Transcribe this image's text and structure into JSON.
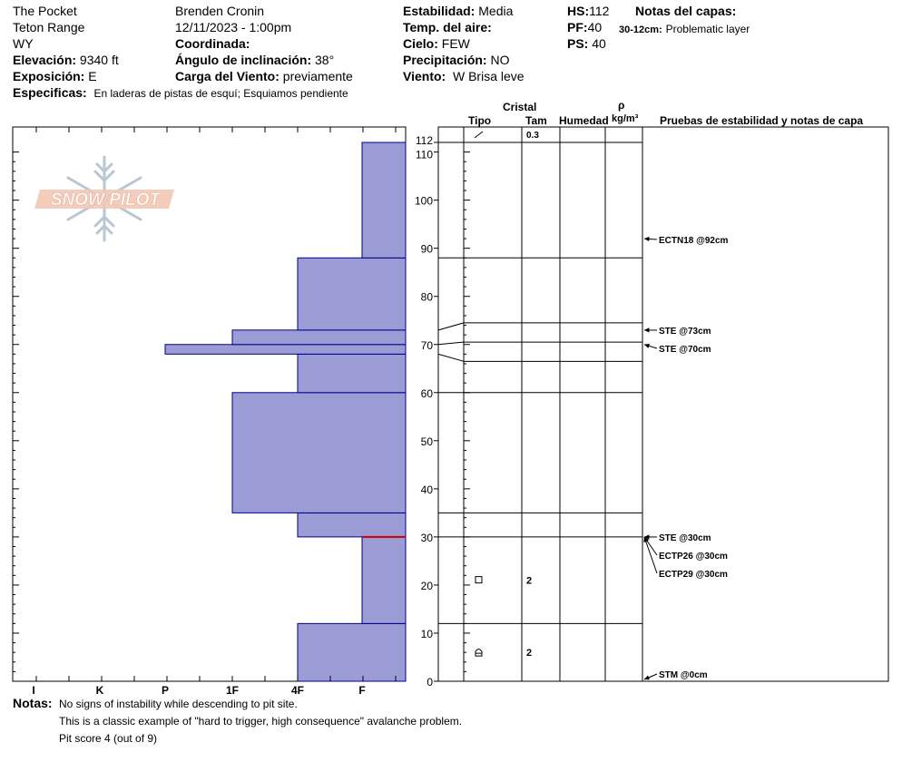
{
  "header": {
    "location": "The Pocket",
    "range": "Teton Range",
    "state": "WY",
    "elevation_label": "Elevación:",
    "elevation_value": "9340 ft",
    "aspect_label": "Exposición:",
    "aspect_value": "E",
    "specifics_label": "Especificas:",
    "specifics_value": "En laderas de pistas de esquí; Esquiamos pendiente",
    "observer": "Brenden Cronin",
    "datetime": "12/11/2023 - 1:00pm",
    "coord_label": "Coordinada:",
    "slope_label": "Ángulo de inclinación:",
    "slope_value": "38°",
    "wind_load_label": "Carga del Viento:",
    "wind_load_value": "previamente",
    "stability_label": "Estabilidad:",
    "stability_value": "Media",
    "air_temp_label": "Temp. del aire:",
    "sky_label": "Cielo:",
    "sky_value": "FEW",
    "precip_label": "Precipitación:",
    "precip_value": "NO",
    "wind_label": "Viento:",
    "wind_value": "W Brisa leve",
    "hs_label": "HS:",
    "hs_value": "112",
    "pf_label": "PF:",
    "pf_value": "40",
    "ps_label": "PS:",
    "ps_value": "40",
    "layer_notes_title": "Notas del capas:",
    "layer_note_range": "30-12cm:",
    "layer_note_text": "Problematic layer"
  },
  "logo": {
    "text": "SNOW PILOT",
    "icon": "snowflake-icon"
  },
  "columns": {
    "crystal": "Cristal",
    "type": "Tipo",
    "size": "Tam",
    "moisture": "Humedad",
    "rho": "ρ",
    "density_unit": "kg/m³",
    "tests": "Pruebas de estabilidad y notas de capa"
  },
  "chart_data": {
    "type": "bar",
    "y_axis": {
      "range": [
        0,
        112
      ],
      "ticks": [
        0,
        10,
        20,
        30,
        40,
        50,
        60,
        70,
        80,
        90,
        100,
        110,
        112
      ]
    },
    "hardness_scale": [
      "I",
      "K",
      "P",
      "1F",
      "4F",
      "F"
    ],
    "colors": {
      "layer_fill": "#9b9bd6",
      "layer_stroke": "#00008b",
      "problem_line": "#cc0000"
    },
    "layers": [
      {
        "bottom": 0,
        "top": 12,
        "hardness": "4F"
      },
      {
        "bottom": 12,
        "top": 30,
        "hardness": "F"
      },
      {
        "bottom": 30,
        "top": 35,
        "hardness": "4F"
      },
      {
        "bottom": 35,
        "top": 60,
        "hardness": "1F"
      },
      {
        "bottom": 60,
        "top": 68,
        "hardness": "4F"
      },
      {
        "bottom": 68,
        "top": 70,
        "hardness": "P"
      },
      {
        "bottom": 70,
        "top": 73,
        "hardness": "1F"
      },
      {
        "bottom": 73,
        "top": 88,
        "hardness": "4F"
      },
      {
        "bottom": 88,
        "top": 112,
        "hardness": "F"
      }
    ],
    "problem_layer_height": 30,
    "crystal_rows": [
      {
        "height": 112,
        "size": "0.3"
      },
      {
        "height": 21,
        "size": "2"
      },
      {
        "height": 6,
        "size": "2"
      }
    ],
    "stability_tests": [
      {
        "label": "ECTN18 @92cm",
        "height": 92
      },
      {
        "label": "STE @73cm",
        "height": 73
      },
      {
        "label": "STE @70cm",
        "height": 70
      },
      {
        "label": "STE @30cm",
        "height": 30
      },
      {
        "label": "ECTP26 @30cm",
        "height": 30
      },
      {
        "label": "ECTP29 @30cm",
        "height": 30
      },
      {
        "label": "STM @0cm",
        "height": 0
      }
    ]
  },
  "notes": {
    "label": "Notas:",
    "line1": "No signs of instability while descending to pit site.",
    "line2": "This is a classic example of \"hard to trigger, high consequence\" avalanche problem.",
    "line3": "Pit score 4 (out of 9)"
  }
}
